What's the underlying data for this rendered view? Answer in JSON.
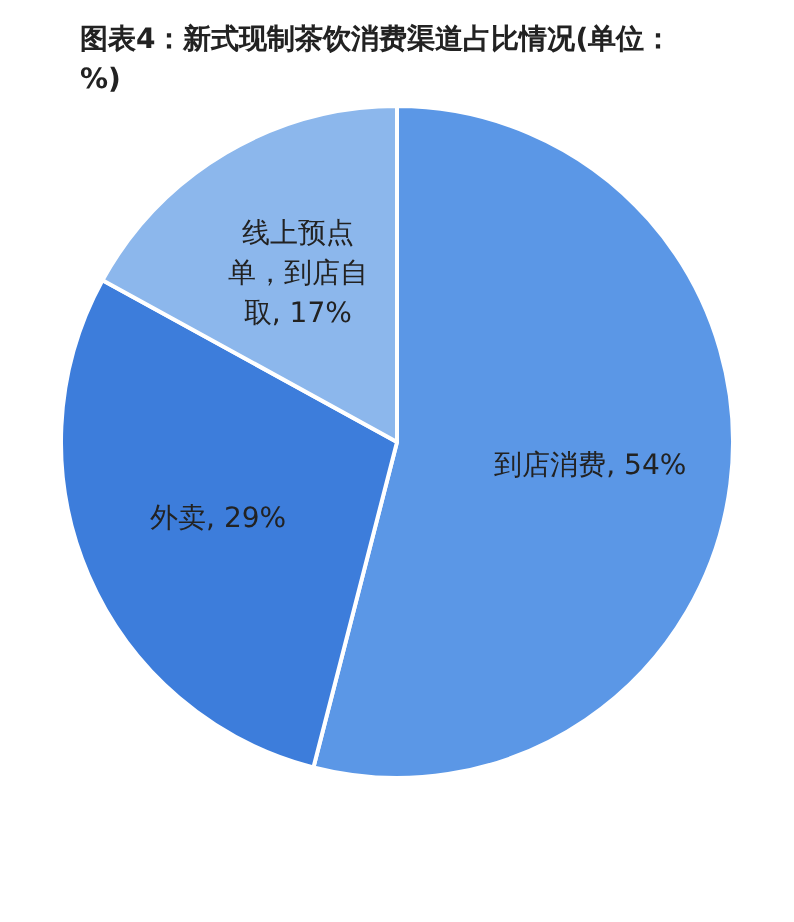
{
  "chart_data": {
    "type": "pie",
    "title": "图表4：新式现制茶饮消费渠道占比情况(单位：%)",
    "categories": [
      "到店消费",
      "外卖",
      "线上预点单，到店自取"
    ],
    "values": [
      54,
      29,
      17
    ],
    "value_labels": [
      "54%",
      "29%",
      "17%"
    ],
    "colors": [
      "#5b97e6",
      "#3d7ddb",
      "#8cb7ec"
    ],
    "legend": false
  }
}
